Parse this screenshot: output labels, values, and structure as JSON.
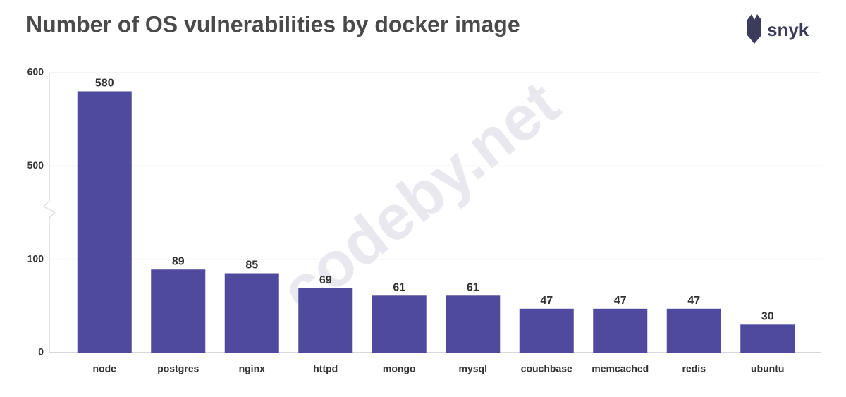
{
  "chart_data": {
    "type": "bar",
    "title": "Number of OS vulnerabilities by docker image",
    "brand": "snyk",
    "watermark": "codeby.net",
    "categories": [
      "node",
      "postgres",
      "nginx",
      "httpd",
      "mongo",
      "mysql",
      "couchbase",
      "memcached",
      "redis",
      "ubuntu"
    ],
    "values": [
      580,
      89,
      85,
      69,
      61,
      61,
      47,
      47,
      47,
      30
    ],
    "color": "#4f4a9e",
    "ylim": [
      0,
      600
    ],
    "yticks": [
      0,
      100,
      500,
      600
    ],
    "y_break": [
      100,
      500
    ],
    "grid": true,
    "data_labels": true
  }
}
